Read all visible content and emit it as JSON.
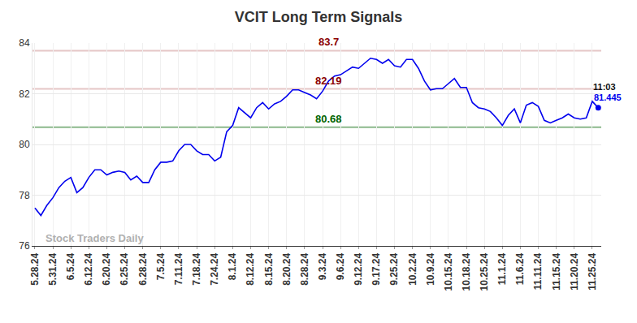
{
  "chart_data": {
    "type": "line",
    "title": "VCIT Long Term Signals",
    "watermark": "Stock Traders Daily",
    "last_point_label": "11:03",
    "categories": [
      "5.28.24",
      null,
      null,
      "5.31.24",
      null,
      null,
      "6.5.24",
      null,
      null,
      "6.12.24",
      null,
      null,
      "6.20.24",
      null,
      null,
      "6.25.24",
      null,
      null,
      "6.28.24",
      null,
      null,
      "7.5.24",
      null,
      null,
      "7.11.24",
      null,
      null,
      "7.18.24",
      null,
      null,
      "7.24.24",
      null,
      null,
      "8.1.24",
      null,
      null,
      "8.12.24",
      null,
      null,
      "8.15.24",
      null,
      null,
      "8.20.24",
      null,
      null,
      "8.28.24",
      null,
      null,
      "9.3.24",
      null,
      null,
      "9.6.24",
      null,
      null,
      "9.12.24",
      null,
      null,
      "9.17.24",
      null,
      null,
      "9.25.24",
      null,
      null,
      "10.2.24",
      null,
      null,
      "10.9.24",
      null,
      null,
      "10.15.24",
      null,
      null,
      "10.18.24",
      null,
      null,
      "10.25.24",
      null,
      null,
      "11.1.24",
      null,
      null,
      "11.6.24",
      null,
      null,
      "11.11.24",
      null,
      null,
      "11.15.24",
      null,
      null,
      "11.20.24",
      null,
      null,
      "11.25.24",
      null
    ],
    "series": [
      {
        "name": "VCIT",
        "color": "#0000ee",
        "values": [
          77.5,
          77.2,
          77.6,
          77.9,
          78.3,
          78.55,
          78.7,
          78.1,
          78.3,
          78.7,
          79.0,
          79.0,
          78.8,
          78.9,
          78.95,
          78.9,
          78.6,
          78.75,
          78.5,
          78.5,
          79.0,
          79.3,
          79.3,
          79.35,
          79.75,
          80.0,
          80.0,
          79.75,
          79.6,
          79.6,
          79.35,
          79.5,
          80.5,
          80.75,
          81.45,
          81.25,
          81.05,
          81.45,
          81.65,
          81.4,
          81.6,
          81.7,
          81.9,
          82.15,
          82.15,
          82.05,
          81.95,
          81.8,
          82.1,
          82.5,
          82.7,
          82.75,
          82.9,
          83.05,
          83.0,
          83.2,
          83.4,
          83.35,
          83.2,
          83.35,
          83.1,
          83.05,
          83.35,
          83.35,
          83.0,
          82.5,
          82.15,
          82.2,
          82.2,
          82.4,
          82.6,
          82.25,
          82.25,
          81.65,
          81.45,
          81.4,
          81.3,
          81.05,
          80.75,
          81.15,
          81.4,
          80.85,
          81.55,
          81.65,
          81.5,
          80.95,
          80.85,
          80.95,
          81.05,
          81.2,
          81.05,
          81.0,
          81.05,
          81.7,
          81.445
        ]
      }
    ],
    "reference_lines": [
      {
        "value": 83.7,
        "color": "#8b0000"
      },
      {
        "value": 82.19,
        "color": "#8b0000"
      },
      {
        "value": 80.68,
        "color": "#006400"
      }
    ],
    "ylim": [
      76,
      84
    ],
    "yticks": [
      76,
      78,
      80,
      82,
      84
    ],
    "grid": true
  }
}
